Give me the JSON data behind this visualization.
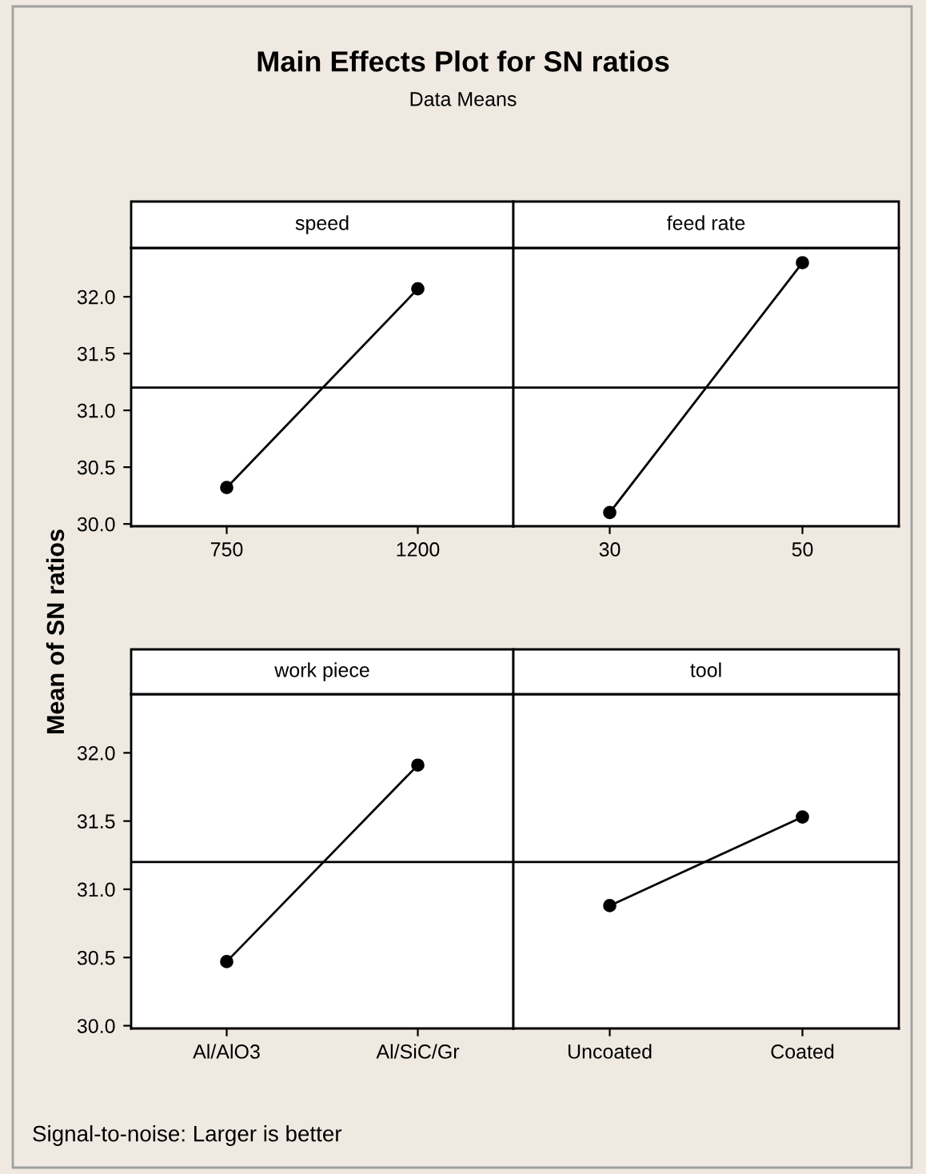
{
  "chart_data": [
    {
      "type": "other",
      "title": "Main Effects Plot for SN ratios",
      "subtitle": "Data Means",
      "ylabel": "Mean of SN ratios",
      "annotations": [
        "Signal-to-noise: Larger is better"
      ]
    },
    {
      "type": "line",
      "title": "speed",
      "categories": [
        "750",
        "1200"
      ],
      "values": [
        30.32,
        32.07
      ],
      "color": "#000000",
      "marker": "circle",
      "line_style": "solid",
      "ylim": [
        29.98,
        32.43
      ],
      "yticks": [
        {
          "value": 30,
          "label": "30.0"
        },
        {
          "value": 30.5,
          "label": "30.5"
        },
        {
          "value": 31,
          "label": "31.0"
        },
        {
          "value": 31.5,
          "label": "31.5"
        },
        {
          "value": 32,
          "label": "32.0"
        }
      ],
      "ref_lines": [
        {
          "axis": "y",
          "value": 31.2
        }
      ],
      "grid": false
    },
    {
      "type": "line",
      "title": "feed rate",
      "categories": [
        "30",
        "50"
      ],
      "values": [
        30.1,
        32.3
      ],
      "color": "#000000",
      "marker": "circle",
      "line_style": "solid",
      "ylim": [
        29.98,
        32.43
      ],
      "ref_lines": [
        {
          "axis": "y",
          "value": 31.2
        }
      ],
      "grid": false,
      "tick_labels": "x"
    },
    {
      "type": "line",
      "title": "work piece",
      "categories": [
        "Al/AlO3",
        "Al/SiC/Gr"
      ],
      "values": [
        30.47,
        31.91
      ],
      "color": "#000000",
      "marker": "circle",
      "line_style": "solid",
      "ylim": [
        29.98,
        32.43
      ],
      "yticks": [
        {
          "value": 30,
          "label": "30.0"
        },
        {
          "value": 30.5,
          "label": "30.5"
        },
        {
          "value": 31,
          "label": "31.0"
        },
        {
          "value": 31.5,
          "label": "31.5"
        },
        {
          "value": 32,
          "label": "32.0"
        }
      ],
      "ref_lines": [
        {
          "axis": "y",
          "value": 31.2
        }
      ],
      "grid": false
    },
    {
      "type": "line",
      "title": "tool",
      "categories": [
        "Uncoated",
        "Coated"
      ],
      "values": [
        30.88,
        31.53
      ],
      "color": "#000000",
      "marker": "circle",
      "line_style": "solid",
      "ylim": [
        29.98,
        32.43
      ],
      "ref_lines": [
        {
          "axis": "y",
          "value": 31.2
        }
      ],
      "grid": false,
      "tick_labels": "x"
    }
  ]
}
